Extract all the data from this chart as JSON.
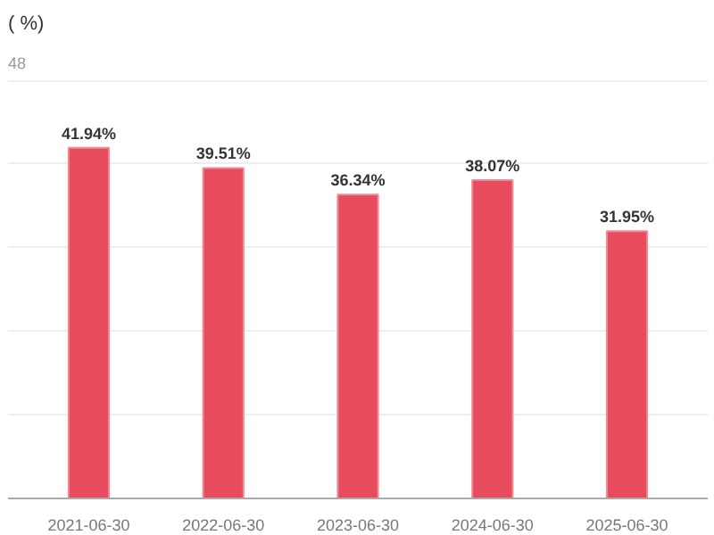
{
  "chart_data": {
    "type": "bar",
    "title": "( %)",
    "subtitle": "48",
    "categories": [
      "2021-06-30",
      "2022-06-30",
      "2023-06-30",
      "2024-06-30",
      "2025-06-30"
    ],
    "values": [
      41.94,
      39.51,
      36.34,
      38.07,
      31.95
    ],
    "value_labels": [
      "41.94%",
      "39.51%",
      "36.34%",
      "38.07%",
      "31.95%"
    ],
    "color": "#e64c5e",
    "grid": "y",
    "tick_labels": "x"
  }
}
